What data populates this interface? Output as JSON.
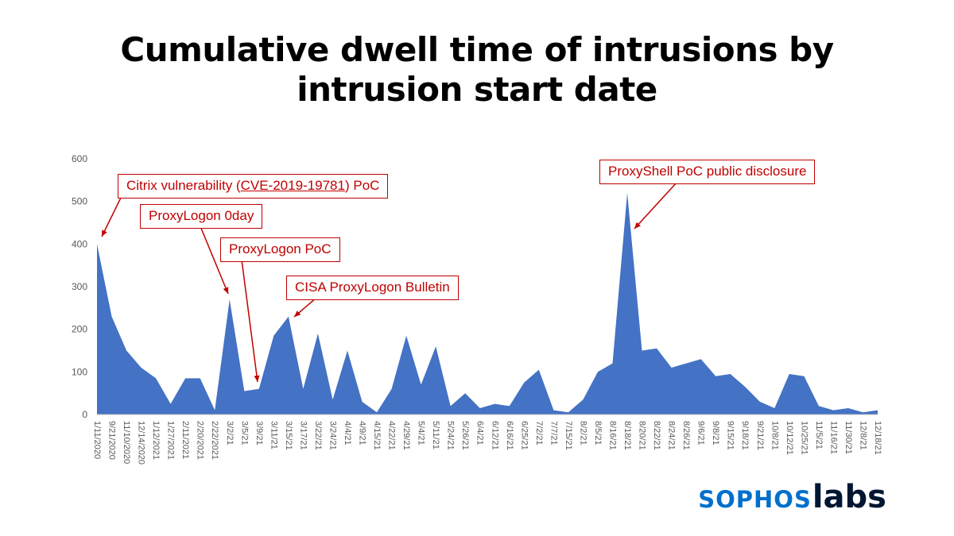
{
  "title": {
    "line1": "Cumulative dwell time of intrusions by",
    "line2": "intrusion start date"
  },
  "colors": {
    "series": "#4472C4",
    "annotation": "#C00000",
    "axis_text": "#595959",
    "logo_sophos": "#0070CC",
    "logo_labs": "#001632"
  },
  "logo": {
    "sophos": "SOPHOS",
    "labs": "labs"
  },
  "chart_data": {
    "type": "area",
    "title": "Cumulative dwell time of intrusions by intrusion start date",
    "xlabel": "",
    "ylabel": "",
    "ylim": [
      0,
      600
    ],
    "yticks": [
      0,
      100,
      200,
      300,
      400,
      500,
      600
    ],
    "grid": false,
    "legend": false,
    "categories": [
      "1/11/2020",
      "9/21/2020",
      "11/10/2020",
      "12/14/2020",
      "1/12/2021",
      "1/27/2021",
      "2/11/2021",
      "2/20/2021",
      "2/22/2021",
      "3/2/21",
      "3/5/21",
      "3/9/21",
      "3/11/21",
      "3/15/21",
      "3/17/21",
      "3/22/21",
      "3/24/21",
      "4/4/21",
      "4/9/21",
      "4/15/21",
      "4/22/21",
      "4/29/21",
      "5/4/21",
      "5/11/21",
      "5/24/21",
      "5/26/21",
      "6/4/21",
      "6/12/21",
      "6/16/21",
      "6/25/21",
      "7/2/21",
      "7/7/21",
      "7/15/21",
      "8/2/21",
      "8/5/21",
      "8/16/21",
      "8/18/21",
      "8/20/21",
      "8/22/21",
      "8/24/21",
      "8/26/21",
      "9/6/21",
      "9/8/21",
      "9/15/21",
      "9/18/21",
      "9/21/21",
      "10/8/21",
      "10/12/21",
      "10/25/21",
      "11/5/21",
      "11/16/21",
      "11/30/21",
      "12/8/21",
      "12/18/21"
    ],
    "values": [
      400,
      230,
      150,
      110,
      85,
      25,
      85,
      85,
      10,
      270,
      55,
      60,
      185,
      230,
      60,
      190,
      35,
      150,
      30,
      5,
      60,
      185,
      70,
      160,
      20,
      50,
      15,
      25,
      20,
      75,
      105,
      10,
      5,
      35,
      100,
      120,
      520,
      150,
      155,
      110,
      120,
      130,
      90,
      95,
      65,
      30,
      15,
      95,
      90,
      20,
      10,
      15,
      5,
      10
    ],
    "annotations": [
      {
        "prefix": "Citrix vulnerability (",
        "link": "CVE-2019-19781",
        "suffix": ") PoC",
        "target_category": "1/11/2020",
        "target_value": 400
      },
      {
        "label": "ProxyLogon 0day",
        "target_category": "3/2/21",
        "target_value": 270
      },
      {
        "label": "ProxyLogon PoC",
        "target_category": "3/9/21",
        "target_value": 60
      },
      {
        "label": "CISA ProxyLogon Bulletin",
        "target_category": "3/15/21",
        "target_value": 230
      },
      {
        "label": "ProxyShell PoC public disclosure",
        "target_category": "8/18/21",
        "target_value": 520
      }
    ]
  }
}
